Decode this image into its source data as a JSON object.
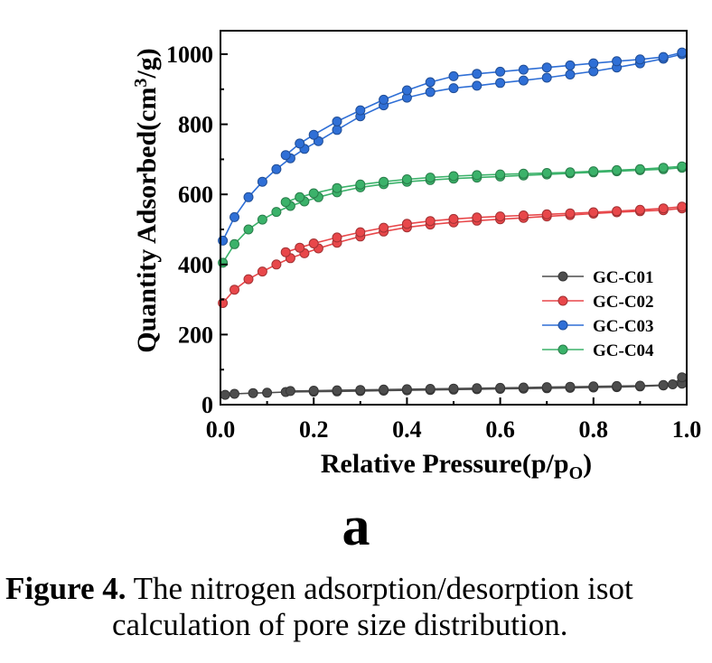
{
  "chart_data": {
    "type": "line",
    "xlabel": "Relative Pressure(p/p",
    "xlabel_sub": "O",
    "xlabel_close": ")",
    "ylabel": "Quantity Adsorbed(cm",
    "ylabel_sup": "3",
    "ylabel_close": "/g)",
    "xlim": [
      0.0,
      1.0
    ],
    "ylim": [
      0,
      1000
    ],
    "xticks": [
      "0.0",
      "0.2",
      "0.4",
      "0.6",
      "0.8",
      "1.0"
    ],
    "yticks": [
      "0",
      "200",
      "400",
      "600",
      "800",
      "1000"
    ],
    "legend_position": "lower-right",
    "series": [
      {
        "name": "GC-C01",
        "color": "#4d4d4d",
        "adsorption": {
          "x": [
            0.01,
            0.03,
            0.07,
            0.1,
            0.14,
            0.2,
            0.25,
            0.3,
            0.35,
            0.4,
            0.45,
            0.5,
            0.55,
            0.6,
            0.65,
            0.7,
            0.75,
            0.8,
            0.85,
            0.9,
            0.95,
            0.99
          ],
          "y": [
            28,
            31,
            33,
            34,
            36,
            37,
            38,
            39,
            40,
            41,
            42,
            43,
            44,
            45,
            46,
            47,
            48,
            49,
            50,
            52,
            55,
            60
          ]
        },
        "desorption": {
          "x": [
            0.99,
            0.97,
            0.95,
            0.9,
            0.85,
            0.8,
            0.75,
            0.7,
            0.65,
            0.6,
            0.55,
            0.5,
            0.45,
            0.4,
            0.35,
            0.3,
            0.25,
            0.2,
            0.15
          ],
          "y": [
            78,
            58,
            56,
            54,
            53,
            52,
            51,
            50,
            49,
            48,
            47,
            46,
            45,
            44,
            43,
            42,
            41,
            40,
            39
          ]
        }
      },
      {
        "name": "GC-C02",
        "color": "#e8474a",
        "adsorption": {
          "x": [
            0.005,
            0.03,
            0.06,
            0.09,
            0.12,
            0.15,
            0.18,
            0.21,
            0.25,
            0.3,
            0.35,
            0.4,
            0.45,
            0.5,
            0.55,
            0.6,
            0.65,
            0.7,
            0.75,
            0.8,
            0.85,
            0.9,
            0.95,
            0.99
          ],
          "y": [
            290,
            328,
            358,
            380,
            400,
            418,
            432,
            446,
            462,
            480,
            494,
            506,
            514,
            520,
            525,
            529,
            533,
            537,
            541,
            545,
            549,
            552,
            555,
            560
          ]
        },
        "desorption": {
          "x": [
            0.99,
            0.95,
            0.9,
            0.85,
            0.8,
            0.75,
            0.7,
            0.65,
            0.6,
            0.55,
            0.5,
            0.45,
            0.4,
            0.35,
            0.3,
            0.25,
            0.2,
            0.17,
            0.14
          ],
          "y": [
            565,
            560,
            556,
            552,
            549,
            546,
            543,
            540,
            537,
            534,
            530,
            524,
            516,
            505,
            492,
            477,
            460,
            448,
            435
          ]
        }
      },
      {
        "name": "GC-C03",
        "color": "#2f6fd6",
        "adsorption": {
          "x": [
            0.005,
            0.03,
            0.06,
            0.09,
            0.12,
            0.15,
            0.18,
            0.21,
            0.25,
            0.3,
            0.35,
            0.4,
            0.45,
            0.5,
            0.55,
            0.6,
            0.65,
            0.7,
            0.75,
            0.8,
            0.85,
            0.9,
            0.95,
            0.99
          ],
          "y": [
            468,
            535,
            592,
            636,
            672,
            703,
            730,
            752,
            784,
            823,
            854,
            876,
            892,
            903,
            910,
            918,
            925,
            933,
            942,
            951,
            962,
            974,
            987,
            1000
          ]
        },
        "desorption": {
          "x": [
            0.99,
            0.95,
            0.9,
            0.85,
            0.8,
            0.75,
            0.7,
            0.65,
            0.6,
            0.55,
            0.5,
            0.45,
            0.4,
            0.35,
            0.3,
            0.25,
            0.2,
            0.17,
            0.14
          ],
          "y": [
            1005,
            992,
            985,
            980,
            974,
            968,
            962,
            956,
            950,
            944,
            937,
            920,
            897,
            870,
            840,
            808,
            770,
            745,
            712
          ]
        }
      },
      {
        "name": "GC-C04",
        "color": "#3bb26a",
        "adsorption": {
          "x": [
            0.005,
            0.03,
            0.06,
            0.09,
            0.12,
            0.15,
            0.18,
            0.21,
            0.25,
            0.3,
            0.35,
            0.4,
            0.45,
            0.5,
            0.55,
            0.6,
            0.65,
            0.7,
            0.75,
            0.8,
            0.85,
            0.9,
            0.95,
            0.99
          ],
          "y": [
            405,
            458,
            500,
            528,
            550,
            567,
            580,
            592,
            606,
            620,
            629,
            636,
            641,
            645,
            648,
            651,
            654,
            657,
            660,
            663,
            666,
            669,
            672,
            676
          ]
        },
        "desorption": {
          "x": [
            0.99,
            0.95,
            0.9,
            0.85,
            0.8,
            0.75,
            0.7,
            0.65,
            0.6,
            0.55,
            0.5,
            0.45,
            0.4,
            0.35,
            0.3,
            0.25,
            0.2,
            0.17,
            0.14
          ],
          "y": [
            680,
            676,
            672,
            669,
            666,
            663,
            661,
            659,
            657,
            655,
            652,
            648,
            643,
            636,
            628,
            618,
            603,
            592,
            578
          ]
        }
      }
    ]
  },
  "figure": {
    "panel_letter": "a",
    "caption_label": "Figure 4.",
    "caption_text_line1": " The nitrogen adsorption/desorption isot",
    "caption_text_line2": "calculation of pore size distribution."
  }
}
